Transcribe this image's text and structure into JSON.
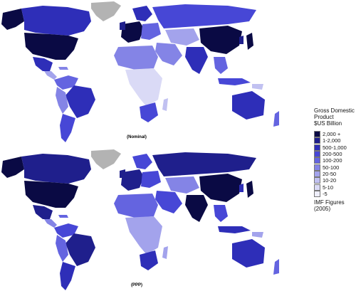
{
  "maps": {
    "nominal": {
      "caption": "(Nominal)"
    },
    "ppp": {
      "caption": "(PPP)"
    }
  },
  "legend": {
    "title_lines": [
      "Gross Domestic",
      "Product",
      "$US Billion"
    ],
    "items": [
      {
        "label": "2,000 +",
        "color": "#0a0a44"
      },
      {
        "label": "1-2,000",
        "color": "#1f1f8c"
      },
      {
        "label": "500-1,000",
        "color": "#2e2eb8"
      },
      {
        "label": "200-500",
        "color": "#4747d6"
      },
      {
        "label": "100-200",
        "color": "#6464e0"
      },
      {
        "label": "50-100",
        "color": "#8484e6"
      },
      {
        "label": "20-50",
        "color": "#a3a3ec"
      },
      {
        "label": "10-20",
        "color": "#c1c1f1"
      },
      {
        "label": "5-10",
        "color": "#dadaf6"
      },
      {
        "label": "-5",
        "color": "#eeeefb"
      }
    ],
    "source_lines": [
      "IMF Figures",
      "(2005)"
    ]
  },
  "colors": {
    "no_data": "#b3b3b3",
    "background": "#ffffff"
  }
}
